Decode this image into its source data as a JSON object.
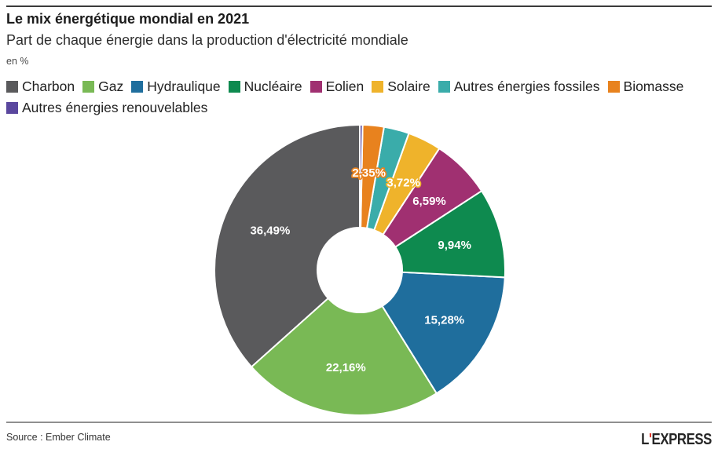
{
  "header": {
    "title": "Le mix énergétique mondial en 2021",
    "subtitle": "Part de chaque énergie dans la production d'électricité mondiale",
    "unit_note": "en %"
  },
  "chart_data": {
    "type": "pie",
    "donut": true,
    "direction": "counterclockwise",
    "start_angle_deg": 0,
    "legend_position": "top",
    "series": [
      {
        "name": "Charbon",
        "value": 36.49,
        "label": "36,49%",
        "color": "#5a5a5c",
        "label_outlined": false
      },
      {
        "name": "Gaz",
        "value": 22.16,
        "label": "22,16%",
        "color": "#79b955",
        "label_outlined": false
      },
      {
        "name": "Hydraulique",
        "value": 15.28,
        "label": "15,28%",
        "color": "#1f6e9d",
        "label_outlined": false
      },
      {
        "name": "Nucléaire",
        "value": 9.94,
        "label": "9,94%",
        "color": "#0e8a4f",
        "label_outlined": false
      },
      {
        "name": "Eolien",
        "value": 6.59,
        "label": "6,59%",
        "color": "#a03071",
        "label_outlined": false
      },
      {
        "name": "Solaire",
        "value": 3.72,
        "label": "3,72%",
        "color": "#efb32b",
        "label_outlined": true
      },
      {
        "name": "Autres énergies fossiles",
        "value": 2.8,
        "label": null,
        "color": "#3aacaa",
        "label_outlined": false
      },
      {
        "name": "Biomasse",
        "value": 2.35,
        "label": "2,35%",
        "color": "#e8821e",
        "label_outlined": true
      },
      {
        "name": "Autres énergies renouvelables",
        "value": 0.31,
        "label": null,
        "color": "#5a479e",
        "label_outlined": false
      }
    ]
  },
  "footer": {
    "source": "Source : Ember Climate",
    "logo": {
      "prefix": "L",
      "apostrophe": "'",
      "rest": "EXPRESS",
      "accent_color": "#e2372b"
    }
  }
}
